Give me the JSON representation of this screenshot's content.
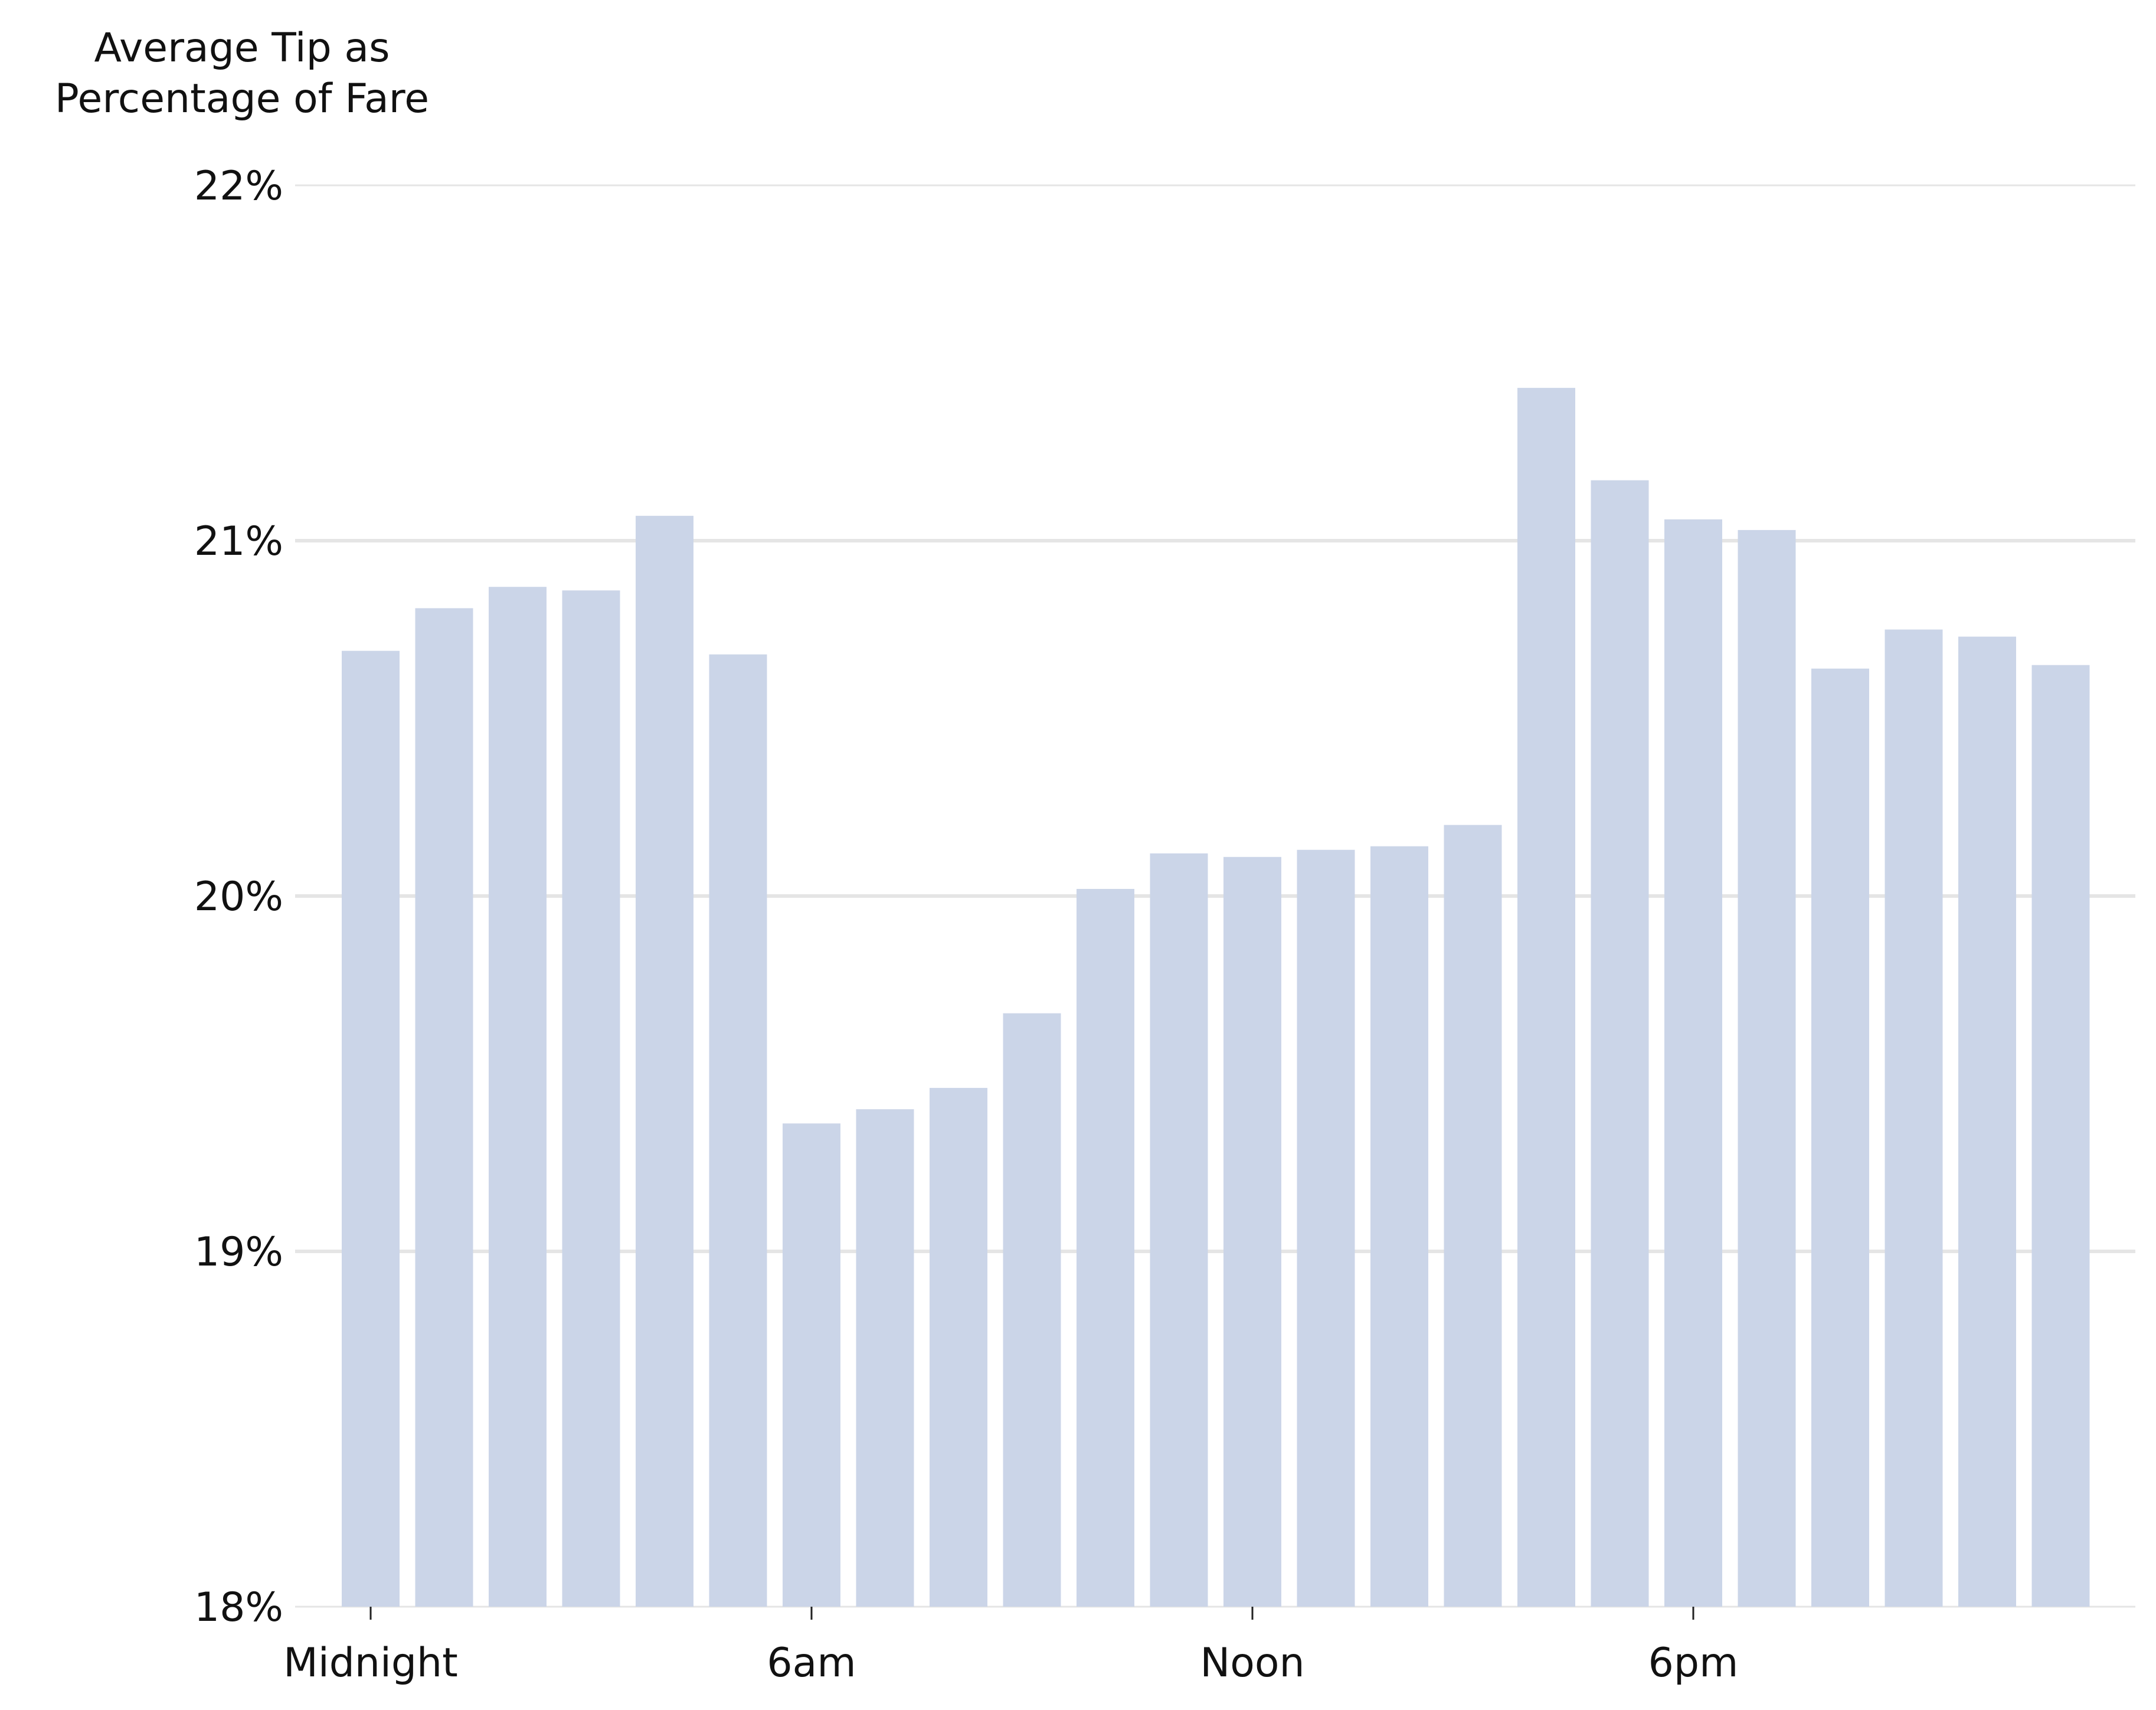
{
  "chart_data": {
    "type": "bar",
    "title": "",
    "ylabel_lines": [
      "Average Tip as",
      "Percentage of Fare"
    ],
    "xlabel": "",
    "categories": [
      "0",
      "1",
      "2",
      "3",
      "4",
      "5",
      "6",
      "7",
      "8",
      "9",
      "10",
      "11",
      "12",
      "13",
      "14",
      "15",
      "16",
      "17",
      "18",
      "19",
      "20",
      "21",
      "22",
      "23"
    ],
    "values": [
      20.69,
      20.81,
      20.87,
      20.86,
      21.07,
      20.68,
      19.36,
      19.4,
      19.46,
      19.67,
      20.02,
      20.12,
      20.11,
      20.13,
      20.14,
      20.2,
      21.43,
      21.17,
      21.06,
      21.03,
      20.64,
      20.75,
      20.73,
      20.65
    ],
    "ylim": [
      18,
      22
    ],
    "yticks": [
      18,
      19,
      20,
      21,
      22
    ],
    "ytick_labels": [
      "18%",
      "19%",
      "20%",
      "21%",
      "22%"
    ],
    "xticks": [
      {
        "index": 0,
        "label": "Midnight"
      },
      {
        "index": 6,
        "label": "6am"
      },
      {
        "index": 12,
        "label": "Noon"
      },
      {
        "index": 18,
        "label": "6pm"
      }
    ],
    "grid": true,
    "legend": "none",
    "colors": {
      "bar": "#cbd5e8",
      "grid": "#e5e5e5",
      "text": "#111111",
      "tick": "#222222"
    }
  }
}
